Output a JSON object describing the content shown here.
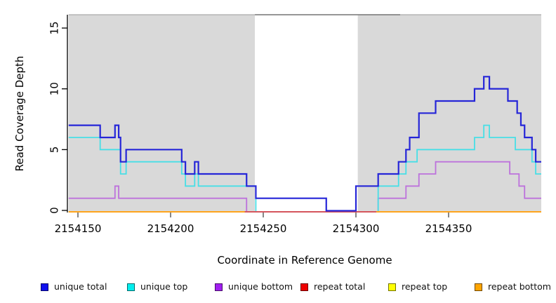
{
  "axes": {
    "x_label": "Coordinate in Reference Genome",
    "y_label": "Read Coverage Depth"
  },
  "chart_data": {
    "type": "line",
    "line_style": "step",
    "title": "",
    "xlabel": "Coordinate in Reference Genome",
    "ylabel": "Read Coverage Depth",
    "xlim": [
      2154145,
      2154400
    ],
    "ylim": [
      0,
      16.2
    ],
    "x_ticks": [
      2154150,
      2154200,
      2154250,
      2154300,
      2154350
    ],
    "y_ticks": [
      0,
      5,
      10,
      15
    ],
    "grid": false,
    "legend_position": "bottom",
    "background_regions": [
      {
        "name": "masked-left",
        "from": 2154145,
        "to": 2154245.5,
        "color": "#d9d9d9"
      },
      {
        "name": "unmasked-gap",
        "from": 2154245.5,
        "to": 2154301,
        "color": "#ffffff"
      },
      {
        "name": "masked-right",
        "from": 2154301,
        "to": 2154400,
        "color": "#d9d9d9"
      }
    ],
    "draw_order": [
      "unique bottom",
      "unique top",
      "repeat top",
      "repeat bottom",
      "repeat total",
      "unique total"
    ],
    "series": [
      {
        "name": "unique total",
        "color": "#2626d8",
        "width": 2.2,
        "zero_y": 300.5,
        "segments": [
          [
            2154145,
            2154162,
            7
          ],
          [
            2154162,
            2154170,
            6
          ],
          [
            2154170,
            2154172,
            7
          ],
          [
            2154172,
            2154173,
            6
          ],
          [
            2154173,
            2154176,
            4
          ],
          [
            2154176,
            2154206,
            5
          ],
          [
            2154206,
            2154208,
            4
          ],
          [
            2154208,
            2154213,
            3
          ],
          [
            2154213,
            2154215,
            4
          ],
          [
            2154215,
            2154241,
            3
          ],
          [
            2154241,
            2154246,
            2
          ],
          [
            2154246,
            2154284,
            1
          ],
          [
            2154284,
            2154300,
            0
          ],
          [
            2154300,
            2154312,
            2
          ],
          [
            2154312,
            2154323,
            3
          ],
          [
            2154323,
            2154327,
            4
          ],
          [
            2154327,
            2154329,
            5
          ],
          [
            2154329,
            2154334,
            6
          ],
          [
            2154334,
            2154343,
            8
          ],
          [
            2154343,
            2154364,
            9
          ],
          [
            2154364,
            2154369,
            10
          ],
          [
            2154369,
            2154372,
            11
          ],
          [
            2154372,
            2154382,
            10
          ],
          [
            2154382,
            2154387,
            9
          ],
          [
            2154387,
            2154389,
            8
          ],
          [
            2154389,
            2154391,
            7
          ],
          [
            2154391,
            2154395,
            6
          ],
          [
            2154395,
            2154397,
            5
          ],
          [
            2154397,
            2154400,
            4
          ]
        ]
      },
      {
        "name": "unique top",
        "color": "#48dfe6",
        "width": 1.8,
        "zero_y": 302,
        "segments": [
          [
            2154145,
            2154162,
            6
          ],
          [
            2154162,
            2154173,
            5
          ],
          [
            2154173,
            2154176,
            3
          ],
          [
            2154176,
            2154206,
            4
          ],
          [
            2154206,
            2154208,
            3
          ],
          [
            2154208,
            2154213,
            2
          ],
          [
            2154213,
            2154215,
            3
          ],
          [
            2154215,
            2154246,
            2
          ],
          [
            2154246,
            2154312,
            0
          ],
          [
            2154312,
            2154323,
            2
          ],
          [
            2154323,
            2154327,
            3
          ],
          [
            2154327,
            2154333,
            4
          ],
          [
            2154333,
            2154364,
            5
          ],
          [
            2154364,
            2154369,
            6
          ],
          [
            2154369,
            2154372,
            7
          ],
          [
            2154372,
            2154386,
            6
          ],
          [
            2154386,
            2154395,
            5
          ],
          [
            2154395,
            2154397,
            4
          ],
          [
            2154397,
            2154400,
            3
          ]
        ]
      },
      {
        "name": "unique bottom",
        "color": "#bd72dc",
        "width": 1.8,
        "zero_y": 302,
        "segments": [
          [
            2154145,
            2154170,
            1
          ],
          [
            2154170,
            2154172,
            2
          ],
          [
            2154172,
            2154241,
            1
          ],
          [
            2154241,
            2154312,
            0
          ],
          [
            2154312,
            2154327,
            1
          ],
          [
            2154327,
            2154334,
            2
          ],
          [
            2154334,
            2154343,
            3
          ],
          [
            2154343,
            2154383,
            4
          ],
          [
            2154383,
            2154388,
            3
          ],
          [
            2154388,
            2154391,
            2
          ],
          [
            2154391,
            2154400,
            1
          ]
        ]
      },
      {
        "name": "repeat total",
        "color": "#cf4a66",
        "width": 1.8,
        "zero_y": 302,
        "segments": [
          [
            2154240,
            2154311,
            0
          ]
        ]
      },
      {
        "name": "repeat top",
        "color": "#ffee00",
        "width": 1.8,
        "zero_y": 302,
        "segments": [
          [
            2154145,
            2154400,
            0
          ]
        ]
      },
      {
        "name": "repeat bottom",
        "color": "#ffa41c",
        "width": 2,
        "zero_y": 302,
        "segments": [
          [
            2154145,
            2154400,
            0
          ]
        ]
      }
    ],
    "legend": [
      {
        "label": "unique total",
        "color": "#1111ee"
      },
      {
        "label": "unique top",
        "color": "#00eeee"
      },
      {
        "label": "unique bottom",
        "color": "#a11ff0"
      },
      {
        "label": "repeat total",
        "color": "#ee0000"
      },
      {
        "label": "repeat top",
        "color": "#ffff00"
      },
      {
        "label": "repeat bottom",
        "color": "#ffa500"
      }
    ]
  }
}
